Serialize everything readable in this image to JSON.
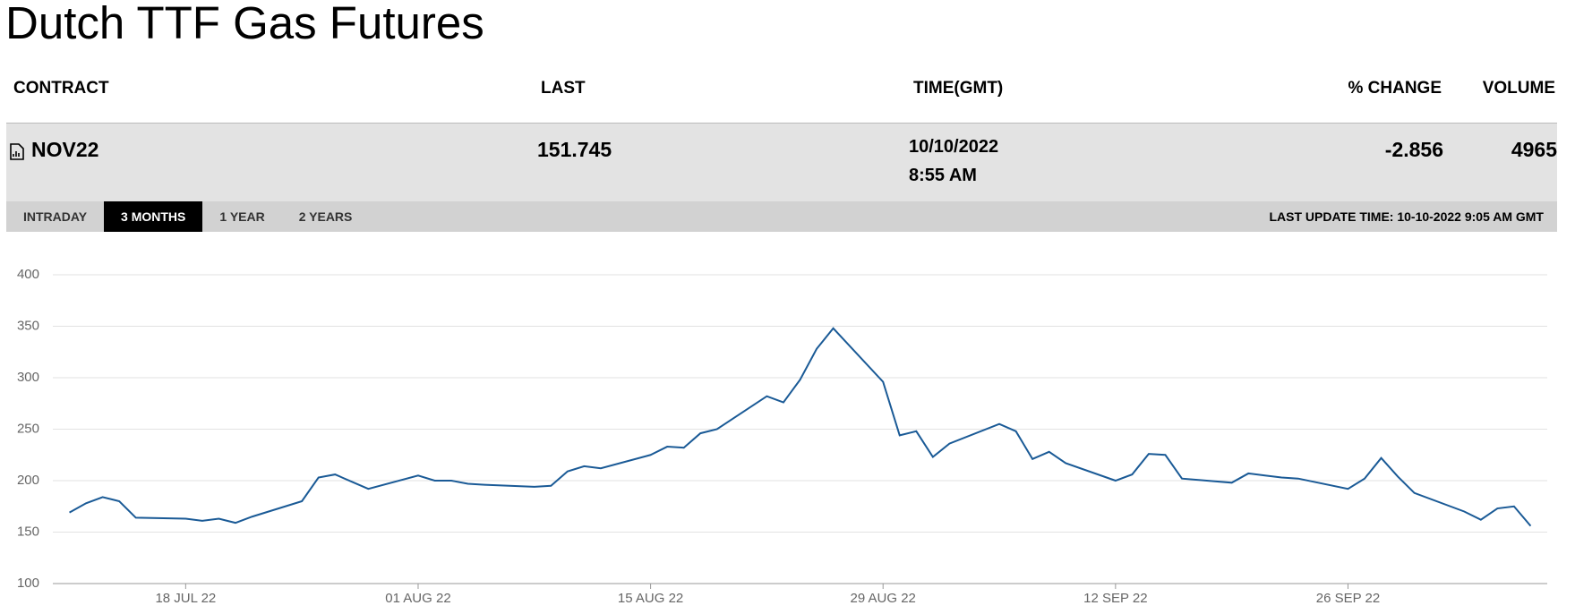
{
  "header": {
    "title": "Dutch TTF Gas Futures"
  },
  "table": {
    "columns": [
      "CONTRACT",
      "LAST",
      "TIME(GMT)",
      "% CHANGE",
      "VOLUME"
    ],
    "rows": [
      [
        "NOV22",
        "151.745",
        [
          "10/10/2022",
          "8:55 AM"
        ],
        "-2.856",
        "4965"
      ]
    ]
  },
  "tabs": {
    "items": [
      "INTRADAY",
      "3 MONTHS",
      "1 YEAR",
      "2 YEARS"
    ],
    "active": 1
  },
  "last_update": "LAST UPDATE TIME: 10-10-2022 9:05 AM GMT",
  "chart_data": {
    "type": "line",
    "color": "#1a5a96",
    "grid": true,
    "x": [
      "2022-07-11",
      "2022-07-12",
      "2022-07-13",
      "2022-07-14",
      "2022-07-15",
      "2022-07-18",
      "2022-07-19",
      "2022-07-20",
      "2022-07-21",
      "2022-07-22",
      "2022-07-25",
      "2022-07-26",
      "2022-07-27",
      "2022-07-28",
      "2022-07-29",
      "2022-08-01",
      "2022-08-02",
      "2022-08-03",
      "2022-08-04",
      "2022-08-05",
      "2022-08-08",
      "2022-08-09",
      "2022-08-10",
      "2022-08-11",
      "2022-08-12",
      "2022-08-15",
      "2022-08-16",
      "2022-08-17",
      "2022-08-18",
      "2022-08-19",
      "2022-08-22",
      "2022-08-23",
      "2022-08-24",
      "2022-08-25",
      "2022-08-26",
      "2022-08-29",
      "2022-08-30",
      "2022-08-31",
      "2022-09-01",
      "2022-09-02",
      "2022-09-05",
      "2022-09-06",
      "2022-09-07",
      "2022-09-08",
      "2022-09-09",
      "2022-09-12",
      "2022-09-13",
      "2022-09-14",
      "2022-09-15",
      "2022-09-16",
      "2022-09-19",
      "2022-09-20",
      "2022-09-21",
      "2022-09-22",
      "2022-09-23",
      "2022-09-26",
      "2022-09-27",
      "2022-09-28",
      "2022-09-29",
      "2022-09-30",
      "2022-10-03",
      "2022-10-04",
      "2022-10-05",
      "2022-10-06",
      "2022-10-07"
    ],
    "values": [
      169,
      178,
      184,
      180,
      164,
      163,
      161,
      163,
      159,
      165,
      180,
      203,
      206,
      199,
      192,
      205,
      200,
      200,
      197,
      196,
      194,
      195,
      209,
      214,
      212,
      225,
      233,
      232,
      246,
      250,
      282,
      276,
      298,
      328,
      348,
      296,
      244,
      248,
      223,
      236,
      255,
      248,
      221,
      228,
      217,
      200,
      206,
      226,
      225,
      202,
      198,
      207,
      205,
      203,
      202,
      192,
      202,
      222,
      204,
      188,
      170,
      162,
      173,
      175,
      156
    ],
    "xlim": [
      "2022-07-10",
      "2022-10-08"
    ],
    "xticks": [
      {
        "value": "2022-07-18",
        "label": "18 JUL 22"
      },
      {
        "value": "2022-08-01",
        "label": "01 AUG 22"
      },
      {
        "value": "2022-08-15",
        "label": "15 AUG 22"
      },
      {
        "value": "2022-08-29",
        "label": "29 AUG 22"
      },
      {
        "value": "2022-09-12",
        "label": "12 SEP 22"
      },
      {
        "value": "2022-09-26",
        "label": "26 SEP 22"
      }
    ],
    "ylim": [
      100,
      400
    ],
    "yticks": [
      100,
      150,
      200,
      250,
      300,
      350,
      400
    ]
  }
}
